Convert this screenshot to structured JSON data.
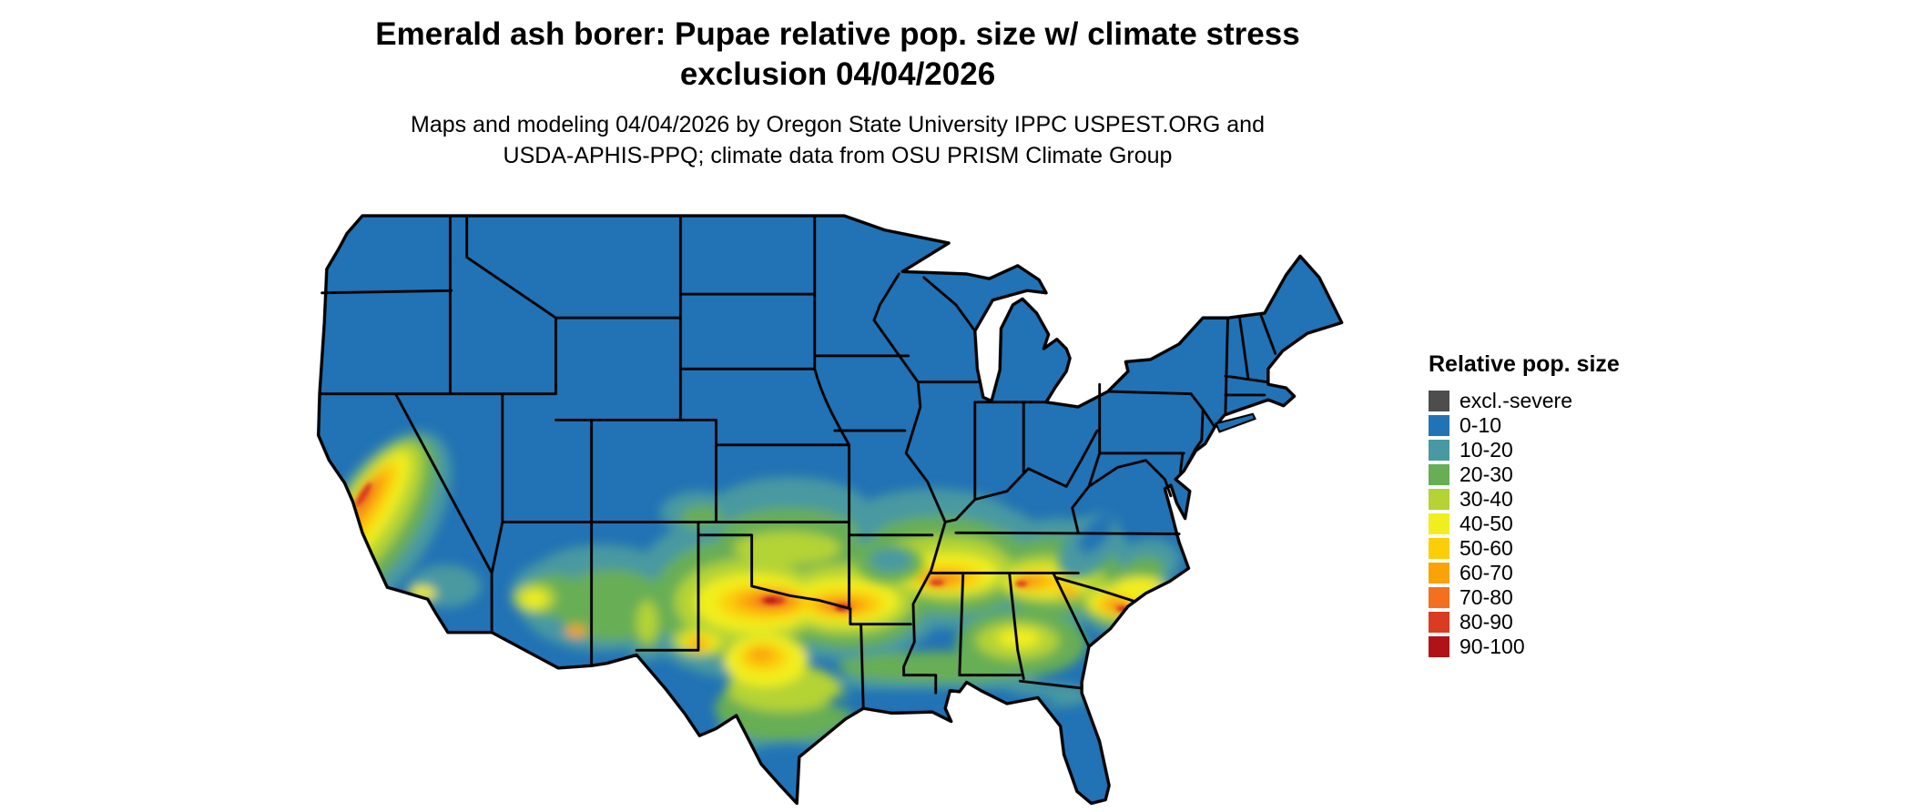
{
  "header": {
    "title_line1": "Emerald ash borer: Pupae relative pop. size w/ climate stress",
    "title_line2": "exclusion 04/04/2026",
    "subtitle_line1": "Maps and modeling 04/04/2026 by Oregon State University IPPC USPEST.ORG and",
    "subtitle_line2": "USDA-APHIS-PPQ; climate data from OSU PRISM Climate Group"
  },
  "legend": {
    "title": "Relative pop. size",
    "entries": [
      {
        "label": "excl.-severe",
        "color": "#4D4D4D"
      },
      {
        "label": "0-10",
        "color": "#2273B5"
      },
      {
        "label": "10-20",
        "color": "#4899A1"
      },
      {
        "label": "20-30",
        "color": "#67AE54"
      },
      {
        "label": "30-40",
        "color": "#B4D335"
      },
      {
        "label": "40-50",
        "color": "#F1EE1F"
      },
      {
        "label": "50-60",
        "color": "#FCCE08"
      },
      {
        "label": "60-70",
        "color": "#FAA307"
      },
      {
        "label": "70-80",
        "color": "#F3701E"
      },
      {
        "label": "80-90",
        "color": "#DA3B21"
      },
      {
        "label": "90-100",
        "color": "#B01217"
      }
    ]
  }
}
